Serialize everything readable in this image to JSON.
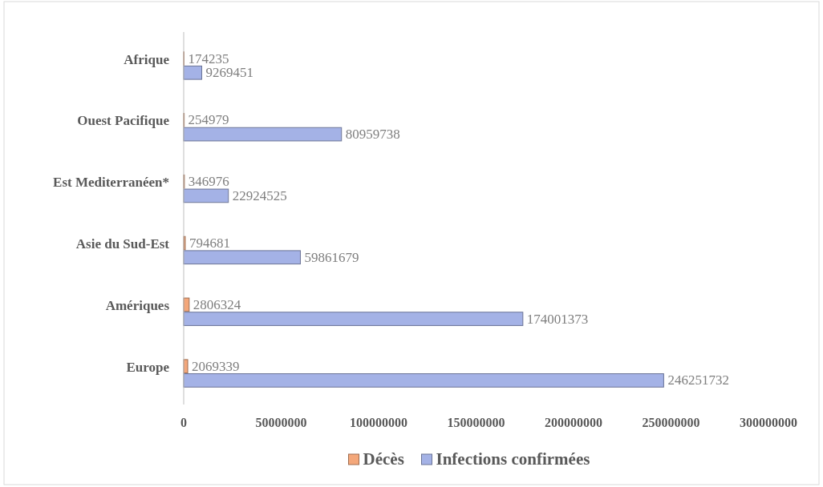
{
  "chart_data": {
    "type": "bar",
    "orientation": "horizontal",
    "categories": [
      "Afrique",
      "Ouest Pacifique",
      "Est Mediterranéen*",
      "Asie du Sud-Est",
      "Amériques",
      "Europe"
    ],
    "series": [
      {
        "name": "Décès",
        "color": "#f4a77a",
        "values": [
          174235,
          254979,
          346976,
          794681,
          2806324,
          2069339
        ]
      },
      {
        "name": "Infections confirmées",
        "color": "#a4b2e6",
        "values": [
          9269451,
          80959738,
          22924525,
          59861679,
          174001373,
          246251732
        ]
      }
    ],
    "xlim": [
      0,
      300000000
    ],
    "xticks": [
      0,
      50000000,
      100000000,
      150000000,
      200000000,
      250000000,
      300000000
    ],
    "data_labels": true,
    "legend": "bottom",
    "grid": false
  }
}
